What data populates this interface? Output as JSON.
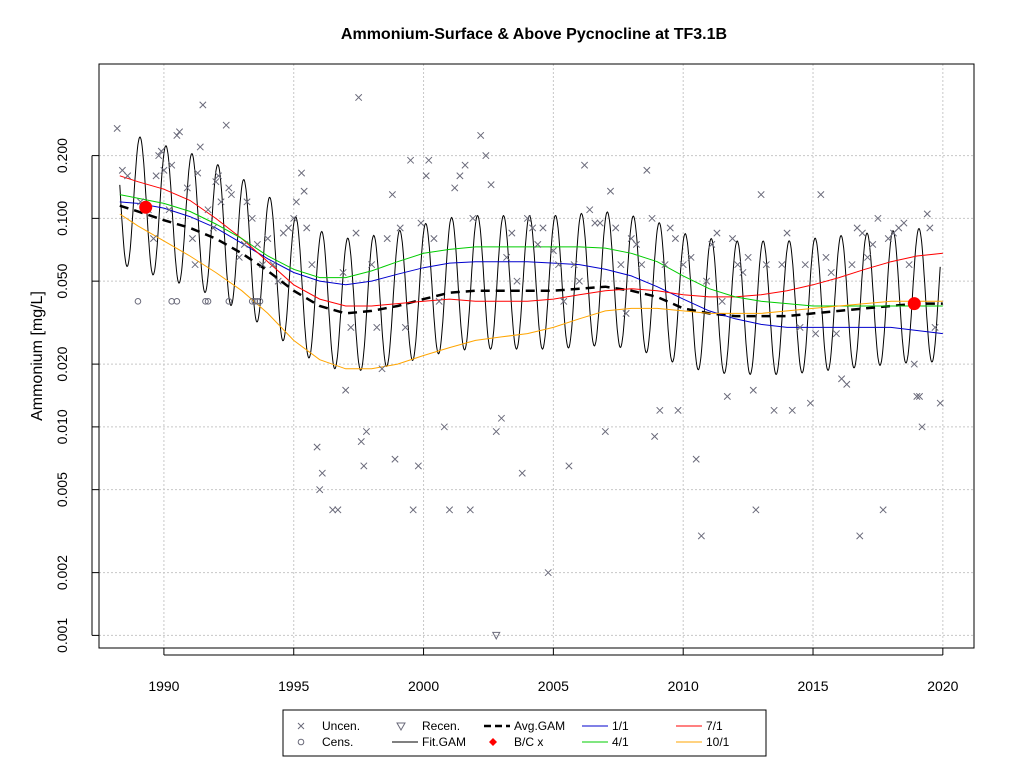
{
  "chart_data": {
    "type": "scatter",
    "title": "Ammonium-Surface & Above Pycnocline at TF3.1B",
    "xlabel": "",
    "ylabel": "Ammonium [mg/L]",
    "y_scale": "log",
    "xlim": [
      1987.5,
      2021.2
    ],
    "ylim": [
      0.00087,
      0.55
    ],
    "x_ticks": [
      1990,
      1995,
      2000,
      2005,
      2010,
      2015,
      2020
    ],
    "y_ticks": [
      0.001,
      0.002,
      0.005,
      0.01,
      0.02,
      0.05,
      0.1,
      0.2
    ],
    "y_tick_labels": [
      "0.001",
      "0.002",
      "0.005",
      "0.010",
      "0.020",
      "0.050",
      "0.100",
      "0.200"
    ],
    "grid": true,
    "legend_position": "bottom",
    "legend": [
      {
        "label": "Uncen.",
        "symbol": "x",
        "color": "#6a6a7a"
      },
      {
        "label": "Recen.",
        "symbol": "triangle-down",
        "color": "#6a6a7a"
      },
      {
        "label": "Avg.GAM",
        "symbol": "dashed-line",
        "color": "#000000"
      },
      {
        "label": "1/1",
        "symbol": "line",
        "color": "#0000cd"
      },
      {
        "label": "7/1",
        "symbol": "line",
        "color": "#ff0000"
      },
      {
        "label": "Cens.",
        "symbol": "circle-open",
        "color": "#6a6a7a"
      },
      {
        "label": "Fit.GAM",
        "symbol": "line",
        "color": "#000000"
      },
      {
        "label": "B/C x",
        "symbol": "diamond-filled",
        "color": "#ff0000"
      },
      {
        "label": "4/1",
        "symbol": "line",
        "color": "#00cc00"
      },
      {
        "label": "10/1",
        "symbol": "line",
        "color": "#ffa500"
      }
    ],
    "colors": {
      "obs": "#6a6a7a",
      "fit": "#000000",
      "avg": "#000000",
      "jan": "#0000cd",
      "jul": "#ff0000",
      "apr": "#00cc00",
      "oct": "#ffa500",
      "bc": "#ff0000"
    },
    "series": [
      {
        "name": "Avg.GAM",
        "x": [
          1988.3,
          1989,
          1990,
          1991,
          1992,
          1993,
          1994,
          1995,
          1996,
          1997,
          1998,
          1999,
          2000,
          2001,
          2002,
          2003,
          2004,
          2005,
          2006,
          2007,
          2008,
          2009,
          2010,
          2011,
          2012,
          2013,
          2014,
          2015,
          2016,
          2017,
          2018,
          2019,
          2020
        ],
        "y": [
          0.115,
          0.108,
          0.098,
          0.09,
          0.08,
          0.068,
          0.056,
          0.045,
          0.038,
          0.035,
          0.036,
          0.038,
          0.041,
          0.044,
          0.045,
          0.045,
          0.045,
          0.045,
          0.046,
          0.047,
          0.045,
          0.042,
          0.037,
          0.035,
          0.034,
          0.034,
          0.034,
          0.035,
          0.036,
          0.037,
          0.038,
          0.039,
          0.039
        ]
      },
      {
        "name": "1/1",
        "x": [
          1988.3,
          1989,
          1990,
          1991,
          1992,
          1993,
          1994,
          1995,
          1996,
          1997,
          1998,
          1999,
          2000,
          2001,
          2002,
          2003,
          2004,
          2005,
          2006,
          2007,
          2008,
          2009,
          2010,
          2011,
          2012,
          2013,
          2014,
          2015,
          2016,
          2017,
          2018,
          2019,
          2020
        ],
        "y": [
          0.12,
          0.118,
          0.112,
          0.102,
          0.09,
          0.076,
          0.064,
          0.055,
          0.05,
          0.048,
          0.05,
          0.054,
          0.058,
          0.061,
          0.062,
          0.062,
          0.062,
          0.061,
          0.06,
          0.057,
          0.053,
          0.047,
          0.041,
          0.036,
          0.033,
          0.031,
          0.03,
          0.03,
          0.03,
          0.03,
          0.03,
          0.029,
          0.028
        ]
      },
      {
        "name": "7/1",
        "x": [
          1988.3,
          1989,
          1990,
          1991,
          1992,
          1993,
          1994,
          1995,
          1996,
          1997,
          1998,
          1999,
          2000,
          2001,
          2002,
          2003,
          2004,
          2005,
          2006,
          2007,
          2008,
          2009,
          2010,
          2011,
          2012,
          2013,
          2014,
          2015,
          2016,
          2017,
          2018,
          2019,
          2020
        ],
        "y": [
          0.16,
          0.15,
          0.138,
          0.122,
          0.1,
          0.08,
          0.062,
          0.048,
          0.041,
          0.038,
          0.038,
          0.039,
          0.04,
          0.041,
          0.04,
          0.04,
          0.04,
          0.041,
          0.043,
          0.045,
          0.046,
          0.045,
          0.043,
          0.042,
          0.042,
          0.043,
          0.045,
          0.048,
          0.052,
          0.057,
          0.062,
          0.066,
          0.068
        ]
      },
      {
        "name": "4/1",
        "x": [
          1988.3,
          1989,
          1990,
          1991,
          1992,
          1993,
          1994,
          1995,
          1996,
          1997,
          1998,
          1999,
          2000,
          2001,
          2002,
          2003,
          2004,
          2005,
          2006,
          2007,
          2008,
          2009,
          2010,
          2011,
          2012,
          2013,
          2014,
          2015,
          2016,
          2017,
          2018,
          2019,
          2020
        ],
        "y": [
          0.13,
          0.125,
          0.118,
          0.108,
          0.094,
          0.08,
          0.066,
          0.057,
          0.052,
          0.052,
          0.056,
          0.062,
          0.068,
          0.071,
          0.073,
          0.073,
          0.073,
          0.073,
          0.073,
          0.072,
          0.068,
          0.062,
          0.053,
          0.046,
          0.042,
          0.04,
          0.039,
          0.038,
          0.038,
          0.038,
          0.038,
          0.038,
          0.038
        ]
      },
      {
        "name": "10/1",
        "x": [
          1988.3,
          1989,
          1990,
          1991,
          1992,
          1993,
          1994,
          1995,
          1996,
          1997,
          1998,
          1999,
          2000,
          2001,
          2002,
          2003,
          2004,
          2005,
          2006,
          2007,
          2008,
          2009,
          2010,
          2011,
          2012,
          2013,
          2014,
          2015,
          2016,
          2017,
          2018,
          2019,
          2020
        ],
        "y": [
          0.105,
          0.092,
          0.078,
          0.066,
          0.055,
          0.045,
          0.035,
          0.026,
          0.021,
          0.019,
          0.019,
          0.02,
          0.022,
          0.024,
          0.026,
          0.027,
          0.028,
          0.03,
          0.033,
          0.036,
          0.037,
          0.037,
          0.036,
          0.035,
          0.035,
          0.035,
          0.036,
          0.037,
          0.038,
          0.039,
          0.04,
          0.04,
          0.04
        ]
      }
    ],
    "fit_gam": {
      "name": "Fit.GAM",
      "x_start": 1988.3,
      "x_end": 2019.9,
      "amplitude_log10": 0.32,
      "peak_month_fraction": 0.6
    },
    "bc_points": [
      {
        "x": 1989.3,
        "y": 0.113
      },
      {
        "x": 2018.9,
        "y": 0.039
      }
    ],
    "observations_uncensored": [
      [
        1988.2,
        0.27
      ],
      [
        1988.4,
        0.17
      ],
      [
        1988.6,
        0.16
      ],
      [
        1989.1,
        0.12
      ],
      [
        1989.4,
        0.11
      ],
      [
        1989.6,
        0.08
      ],
      [
        1989.7,
        0.16
      ],
      [
        1989.8,
        0.2
      ],
      [
        1989.9,
        0.21
      ],
      [
        1990.0,
        0.17
      ],
      [
        1990.2,
        0.11
      ],
      [
        1990.3,
        0.18
      ],
      [
        1990.5,
        0.25
      ],
      [
        1990.6,
        0.26
      ],
      [
        1990.9,
        0.14
      ],
      [
        1991.1,
        0.08
      ],
      [
        1991.2,
        0.06
      ],
      [
        1991.3,
        0.165
      ],
      [
        1991.4,
        0.22
      ],
      [
        1991.5,
        0.35
      ],
      [
        1991.7,
        0.11
      ],
      [
        1991.9,
        0.09
      ],
      [
        1992.0,
        0.15
      ],
      [
        1992.1,
        0.16
      ],
      [
        1992.2,
        0.12
      ],
      [
        1992.4,
        0.28
      ],
      [
        1992.5,
        0.14
      ],
      [
        1992.6,
        0.13
      ],
      [
        1992.9,
        0.065
      ],
      [
        1993.1,
        0.075
      ],
      [
        1993.2,
        0.12
      ],
      [
        1993.4,
        0.1
      ],
      [
        1993.6,
        0.075
      ],
      [
        1993.8,
        0.06
      ],
      [
        1994.0,
        0.08
      ],
      [
        1994.2,
        0.06
      ],
      [
        1994.4,
        0.05
      ],
      [
        1994.6,
        0.085
      ],
      [
        1994.8,
        0.09
      ],
      [
        1995.0,
        0.1
      ],
      [
        1995.1,
        0.12
      ],
      [
        1995.3,
        0.165
      ],
      [
        1995.4,
        0.135
      ],
      [
        1995.5,
        0.09
      ],
      [
        1995.7,
        0.06
      ],
      [
        1995.9,
        0.008
      ],
      [
        1996.0,
        0.005
      ],
      [
        1996.1,
        0.006
      ],
      [
        1996.5,
        0.004
      ],
      [
        1996.7,
        0.004
      ],
      [
        1996.9,
        0.055
      ],
      [
        1997.0,
        0.015
      ],
      [
        1997.2,
        0.03
      ],
      [
        1997.4,
        0.085
      ],
      [
        1997.5,
        0.38
      ],
      [
        1997.6,
        0.0085
      ],
      [
        1997.7,
        0.0065
      ],
      [
        1997.8,
        0.0095
      ],
      [
        1998.0,
        0.06
      ],
      [
        1998.2,
        0.03
      ],
      [
        1998.4,
        0.019
      ],
      [
        1998.6,
        0.08
      ],
      [
        1998.8,
        0.13
      ],
      [
        1998.9,
        0.007
      ],
      [
        1999.1,
        0.09
      ],
      [
        1999.3,
        0.03
      ],
      [
        1999.5,
        0.19
      ],
      [
        1999.6,
        0.004
      ],
      [
        1999.8,
        0.0065
      ],
      [
        1999.9,
        0.095
      ],
      [
        2000.1,
        0.16
      ],
      [
        2000.2,
        0.19
      ],
      [
        2000.4,
        0.08
      ],
      [
        2000.6,
        0.04
      ],
      [
        2000.8,
        0.01
      ],
      [
        2001.0,
        0.004
      ],
      [
        2001.2,
        0.14
      ],
      [
        2001.4,
        0.16
      ],
      [
        2001.6,
        0.18
      ],
      [
        2001.8,
        0.004
      ],
      [
        2001.9,
        0.1
      ],
      [
        2002.2,
        0.25
      ],
      [
        2002.4,
        0.2
      ],
      [
        2002.6,
        0.145
      ],
      [
        2002.8,
        0.0095
      ],
      [
        2003.0,
        0.011
      ],
      [
        2003.2,
        0.065
      ],
      [
        2003.4,
        0.085
      ],
      [
        2003.6,
        0.05
      ],
      [
        2003.8,
        0.006
      ],
      [
        2004.0,
        0.1
      ],
      [
        2004.2,
        0.09
      ],
      [
        2004.4,
        0.075
      ],
      [
        2004.6,
        0.09
      ],
      [
        2004.8,
        0.002
      ],
      [
        2005.0,
        0.07
      ],
      [
        2005.2,
        0.06
      ],
      [
        2005.4,
        0.04
      ],
      [
        2005.6,
        0.0065
      ],
      [
        2005.8,
        0.06
      ],
      [
        2006.0,
        0.05
      ],
      [
        2006.2,
        0.18
      ],
      [
        2006.4,
        0.11
      ],
      [
        2006.6,
        0.095
      ],
      [
        2006.8,
        0.095
      ],
      [
        2007.0,
        0.0095
      ],
      [
        2007.2,
        0.135
      ],
      [
        2007.4,
        0.09
      ],
      [
        2007.6,
        0.06
      ],
      [
        2007.8,
        0.035
      ],
      [
        2008.0,
        0.08
      ],
      [
        2008.2,
        0.075
      ],
      [
        2008.4,
        0.06
      ],
      [
        2008.6,
        0.17
      ],
      [
        2008.8,
        0.1
      ],
      [
        2008.9,
        0.009
      ],
      [
        2009.1,
        0.012
      ],
      [
        2009.3,
        0.06
      ],
      [
        2009.5,
        0.09
      ],
      [
        2009.7,
        0.08
      ],
      [
        2009.8,
        0.012
      ],
      [
        2010.0,
        0.06
      ],
      [
        2010.3,
        0.065
      ],
      [
        2010.5,
        0.007
      ],
      [
        2010.7,
        0.003
      ],
      [
        2010.9,
        0.05
      ],
      [
        2011.1,
        0.075
      ],
      [
        2011.3,
        0.085
      ],
      [
        2011.5,
        0.04
      ],
      [
        2011.7,
        0.014
      ],
      [
        2011.9,
        0.08
      ],
      [
        2012.1,
        0.06
      ],
      [
        2012.3,
        0.055
      ],
      [
        2012.5,
        0.065
      ],
      [
        2012.7,
        0.015
      ],
      [
        2012.8,
        0.004
      ],
      [
        2013.0,
        0.13
      ],
      [
        2013.2,
        0.06
      ],
      [
        2013.5,
        0.012
      ],
      [
        2013.8,
        0.06
      ],
      [
        2014.0,
        0.085
      ],
      [
        2014.2,
        0.012
      ],
      [
        2014.5,
        0.03
      ],
      [
        2014.7,
        0.06
      ],
      [
        2014.9,
        0.013
      ],
      [
        2015.1,
        0.028
      ],
      [
        2015.3,
        0.13
      ],
      [
        2015.5,
        0.065
      ],
      [
        2015.7,
        0.055
      ],
      [
        2015.9,
        0.028
      ],
      [
        2016.1,
        0.017
      ],
      [
        2016.3,
        0.016
      ],
      [
        2016.5,
        0.06
      ],
      [
        2016.7,
        0.09
      ],
      [
        2016.8,
        0.003
      ],
      [
        2016.9,
        0.085
      ],
      [
        2017.1,
        0.065
      ],
      [
        2017.3,
        0.075
      ],
      [
        2017.5,
        0.1
      ],
      [
        2017.7,
        0.004
      ],
      [
        2017.9,
        0.08
      ],
      [
        2018.1,
        0.085
      ],
      [
        2018.3,
        0.09
      ],
      [
        2018.5,
        0.095
      ],
      [
        2018.7,
        0.06
      ],
      [
        2018.9,
        0.02
      ],
      [
        2019.0,
        0.014
      ],
      [
        2019.1,
        0.014
      ],
      [
        2019.2,
        0.01
      ],
      [
        2019.4,
        0.105
      ],
      [
        2019.5,
        0.09
      ],
      [
        2019.7,
        0.03
      ],
      [
        2019.9,
        0.013
      ]
    ],
    "observations_censored": [
      [
        1989.0,
        0.04
      ],
      [
        1990.3,
        0.04
      ],
      [
        1990.5,
        0.04
      ],
      [
        1991.6,
        0.04
      ],
      [
        1991.7,
        0.04
      ],
      [
        1992.5,
        0.04
      ],
      [
        1993.4,
        0.04
      ],
      [
        1993.5,
        0.04
      ],
      [
        1993.6,
        0.04
      ],
      [
        1993.7,
        0.04
      ]
    ],
    "observations_recensored": [
      [
        2002.8,
        0.001
      ]
    ]
  }
}
